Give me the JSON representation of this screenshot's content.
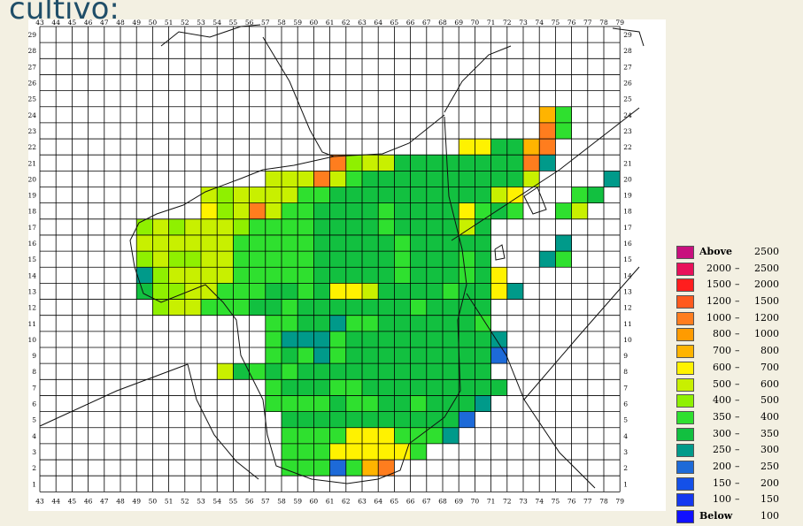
{
  "caption": "cultivo:",
  "map": {
    "x_labels": [
      "43",
      "44",
      "45",
      "46",
      "47",
      "48",
      "49",
      "50",
      "51",
      "52",
      "53",
      "54",
      "55",
      "56",
      "57",
      "58",
      "59",
      "60",
      "61",
      "62",
      "63",
      "64",
      "65",
      "66",
      "67",
      "68",
      "69",
      "70",
      "71",
      "72",
      "73",
      "74",
      "75",
      "76",
      "77",
      "78",
      "79"
    ],
    "y_labels": [
      "29",
      "28",
      "27",
      "26",
      "25",
      "24",
      "23",
      "22",
      "21",
      "20",
      "19",
      "18",
      "17",
      "16",
      "15",
      "14",
      "13",
      "12",
      "11",
      "10",
      "9",
      "8",
      "7",
      "6",
      "5",
      "4",
      "3",
      "2",
      "1"
    ],
    "palette": {
      "t": "#009a8a",
      "g": "#12c040",
      "G": "#2fe02f",
      "l": "#8ff000",
      "L": "#c8f000",
      "y": "#fff200",
      "o": "#ffb400",
      "O": "#ff7d1e",
      "b": "#1d6ad8"
    },
    "rows": [
      "....................................",
      "....................................",
      "....................................",
      "....................................",
      "....................................",
      "...............................oG....",
      "...............................OG....",
      "..........................yyggoO.....",
      "..................OlLLggggggggOt.....",
      "..............LLLOLGggggggggggL....tt.",
      "..........LlLLLLGGggggggggggLy...Gg...",
      "..........ylLOLGGggggGggggyGgG..GL....",
      "......lLlLLLlGGGGggggGggggLg..........",
      "......LLLLLLGGGGGgggggGggggg....t.....",
      "......lLllLLGGGGGgggggGgggGg...tG.....",
      "......tlLLLLGGGGGgggggGgggGgy.........",
      "......gllLLGGGggGgyyLggggGggyt........",
      ".......lLLGGGggGgggggggGgggg..........",
      "..............GGggtGGggggggG..........",
      "..............GtttGgggggggggt.........",
      "..............GgGtGgggggggggb.........",
      "...........LgGgGgggggggggggg..........",
      "..............GgggGGggggggggg.........",
      "..............GGGGgGGggGgggt..........",
      "...............gggggggggggb...........",
      "...............GGGGyyyGGGt............",
      "...............GGGyyyyyG..............",
      "...............GGGbGoO................",
      "...................................."
    ]
  },
  "legend": {
    "items": [
      {
        "a": "Above",
        "b": "2500",
        "color": "#c8107e",
        "word": true
      },
      {
        "a": "2000",
        "b": "2500",
        "color": "#e8105a"
      },
      {
        "a": "1500",
        "b": "2000",
        "color": "#ff1e1e"
      },
      {
        "a": "1200",
        "b": "1500",
        "color": "#ff5a1e"
      },
      {
        "a": "1000",
        "b": "1200",
        "color": "#ff7d1e"
      },
      {
        "a": "800",
        "b": "1000",
        "color": "#ff9b00"
      },
      {
        "a": "700",
        "b": "800",
        "color": "#ffb400"
      },
      {
        "a": "600",
        "b": "700",
        "color": "#fff200"
      },
      {
        "a": "500",
        "b": "600",
        "color": "#c8f000"
      },
      {
        "a": "400",
        "b": "500",
        "color": "#8ff000"
      },
      {
        "a": "350",
        "b": "400",
        "color": "#2fe02f"
      },
      {
        "a": "300",
        "b": "350",
        "color": "#12c040"
      },
      {
        "a": "250",
        "b": "300",
        "color": "#009a8a"
      },
      {
        "a": "200",
        "b": "250",
        "color": "#1d6ad8"
      },
      {
        "a": "150",
        "b": "200",
        "color": "#1450e8"
      },
      {
        "a": "100",
        "b": "150",
        "color": "#1438f0"
      },
      {
        "a": "Below",
        "b": "100",
        "color": "#1010ff",
        "word": true
      }
    ]
  }
}
